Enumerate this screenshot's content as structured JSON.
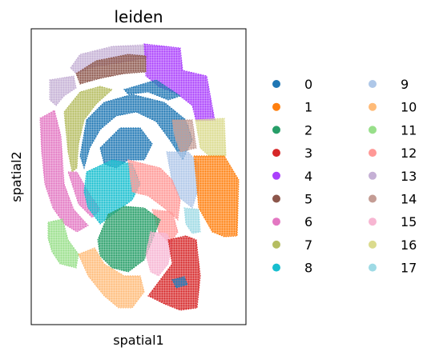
{
  "chart_data": {
    "type": "scatter",
    "title": "leiden",
    "xlabel": "spatial1",
    "ylabel": "spatial2",
    "grid": false,
    "legend_placement": "right, two columns",
    "ticks_shown": false,
    "series": [
      {
        "name": "0",
        "color": "#1f77b4"
      },
      {
        "name": "1",
        "color": "#ff7f0e"
      },
      {
        "name": "2",
        "color": "#279e68"
      },
      {
        "name": "3",
        "color": "#d62728"
      },
      {
        "name": "4",
        "color": "#aa40fc"
      },
      {
        "name": "5",
        "color": "#8c564b"
      },
      {
        "name": "6",
        "color": "#e377c2"
      },
      {
        "name": "7",
        "color": "#b5bd61"
      },
      {
        "name": "8",
        "color": "#17becf"
      },
      {
        "name": "9",
        "color": "#aec7e8"
      },
      {
        "name": "10",
        "color": "#ffbb78"
      },
      {
        "name": "11",
        "color": "#98df8a"
      },
      {
        "name": "12",
        "color": "#ff9896"
      },
      {
        "name": "13",
        "color": "#c5b0d5"
      },
      {
        "name": "14",
        "color": "#c49c94"
      },
      {
        "name": "15",
        "color": "#f7b6d2"
      },
      {
        "name": "16",
        "color": "#dbdb8d"
      },
      {
        "name": "17",
        "color": "#9edae5"
      }
    ]
  }
}
